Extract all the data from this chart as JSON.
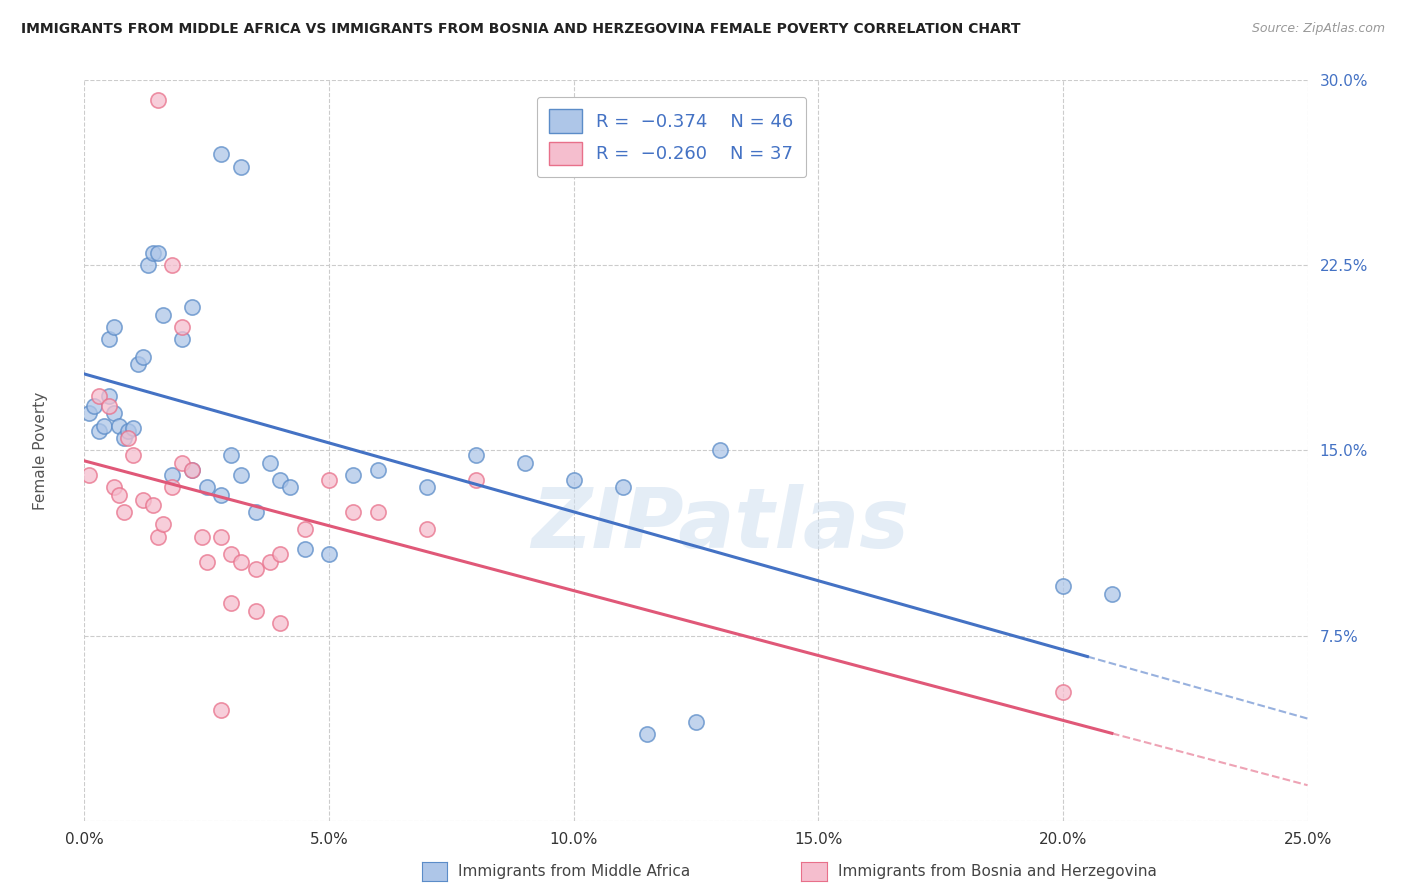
{
  "title": "IMMIGRANTS FROM MIDDLE AFRICA VS IMMIGRANTS FROM BOSNIA AND HERZEGOVINA FEMALE POVERTY CORRELATION CHART",
  "source": "Source: ZipAtlas.com",
  "ylabel_label": "Female Poverty",
  "xlim": [
    0.0,
    25.0
  ],
  "ylim": [
    0.0,
    30.0
  ],
  "legend_blue_label": "Immigrants from Middle Africa",
  "legend_pink_label": "Immigrants from Bosnia and Herzegovina",
  "blue_fill_color": "#aec6e8",
  "pink_fill_color": "#f5bece",
  "blue_edge_color": "#5b8cc8",
  "pink_edge_color": "#e8708a",
  "blue_line_color": "#4472c4",
  "pink_line_color": "#e05878",
  "right_axis_color": "#4472c4",
  "scatter_size": 120,
  "blue_dots": [
    [
      0.1,
      16.5
    ],
    [
      0.2,
      16.8
    ],
    [
      0.3,
      15.8
    ],
    [
      0.4,
      16.0
    ],
    [
      0.5,
      17.2
    ],
    [
      0.6,
      16.5
    ],
    [
      0.7,
      16.0
    ],
    [
      0.8,
      15.5
    ],
    [
      0.9,
      15.8
    ],
    [
      1.0,
      15.9
    ],
    [
      1.1,
      18.5
    ],
    [
      1.2,
      18.8
    ],
    [
      1.3,
      22.5
    ],
    [
      1.4,
      23.0
    ],
    [
      1.5,
      23.0
    ],
    [
      1.6,
      20.5
    ],
    [
      2.0,
      19.5
    ],
    [
      2.2,
      20.8
    ],
    [
      2.5,
      13.5
    ],
    [
      2.8,
      13.2
    ],
    [
      3.0,
      14.8
    ],
    [
      3.2,
      14.0
    ],
    [
      3.5,
      12.5
    ],
    [
      3.8,
      14.5
    ],
    [
      4.0,
      13.8
    ],
    [
      4.2,
      13.5
    ],
    [
      4.5,
      11.0
    ],
    [
      5.0,
      10.8
    ],
    [
      5.5,
      14.0
    ],
    [
      6.0,
      14.2
    ],
    [
      7.0,
      13.5
    ],
    [
      8.0,
      14.8
    ],
    [
      9.0,
      14.5
    ],
    [
      10.0,
      13.8
    ],
    [
      11.0,
      13.5
    ],
    [
      13.0,
      15.0
    ],
    [
      20.0,
      9.5
    ],
    [
      21.0,
      9.2
    ],
    [
      2.8,
      27.0
    ],
    [
      3.2,
      26.5
    ],
    [
      11.5,
      3.5
    ],
    [
      12.5,
      4.0
    ],
    [
      0.5,
      19.5
    ],
    [
      0.6,
      20.0
    ],
    [
      1.8,
      14.0
    ],
    [
      2.2,
      14.2
    ]
  ],
  "pink_dots": [
    [
      0.1,
      14.0
    ],
    [
      0.3,
      17.2
    ],
    [
      0.5,
      16.8
    ],
    [
      0.6,
      13.5
    ],
    [
      0.7,
      13.2
    ],
    [
      0.8,
      12.5
    ],
    [
      0.9,
      15.5
    ],
    [
      1.0,
      14.8
    ],
    [
      1.2,
      13.0
    ],
    [
      1.4,
      12.8
    ],
    [
      1.5,
      11.5
    ],
    [
      1.6,
      12.0
    ],
    [
      1.8,
      13.5
    ],
    [
      2.0,
      14.5
    ],
    [
      2.2,
      14.2
    ],
    [
      2.4,
      11.5
    ],
    [
      2.5,
      10.5
    ],
    [
      2.8,
      11.5
    ],
    [
      3.0,
      10.8
    ],
    [
      3.2,
      10.5
    ],
    [
      3.5,
      10.2
    ],
    [
      3.8,
      10.5
    ],
    [
      4.0,
      10.8
    ],
    [
      4.5,
      11.8
    ],
    [
      5.0,
      13.8
    ],
    [
      5.5,
      12.5
    ],
    [
      6.0,
      12.5
    ],
    [
      7.0,
      11.8
    ],
    [
      8.0,
      13.8
    ],
    [
      1.8,
      22.5
    ],
    [
      2.0,
      20.0
    ],
    [
      3.0,
      8.8
    ],
    [
      3.5,
      8.5
    ],
    [
      4.0,
      8.0
    ],
    [
      2.8,
      4.5
    ],
    [
      20.0,
      5.2
    ],
    [
      1.5,
      29.2
    ]
  ],
  "watermark_text": "ZIPatlas",
  "background_color": "#ffffff",
  "grid_color": "#cccccc",
  "x_ticks": [
    0.0,
    5.0,
    10.0,
    15.0,
    20.0,
    25.0
  ],
  "y_ticks_right": [
    7.5,
    15.0,
    22.5,
    30.0
  ]
}
